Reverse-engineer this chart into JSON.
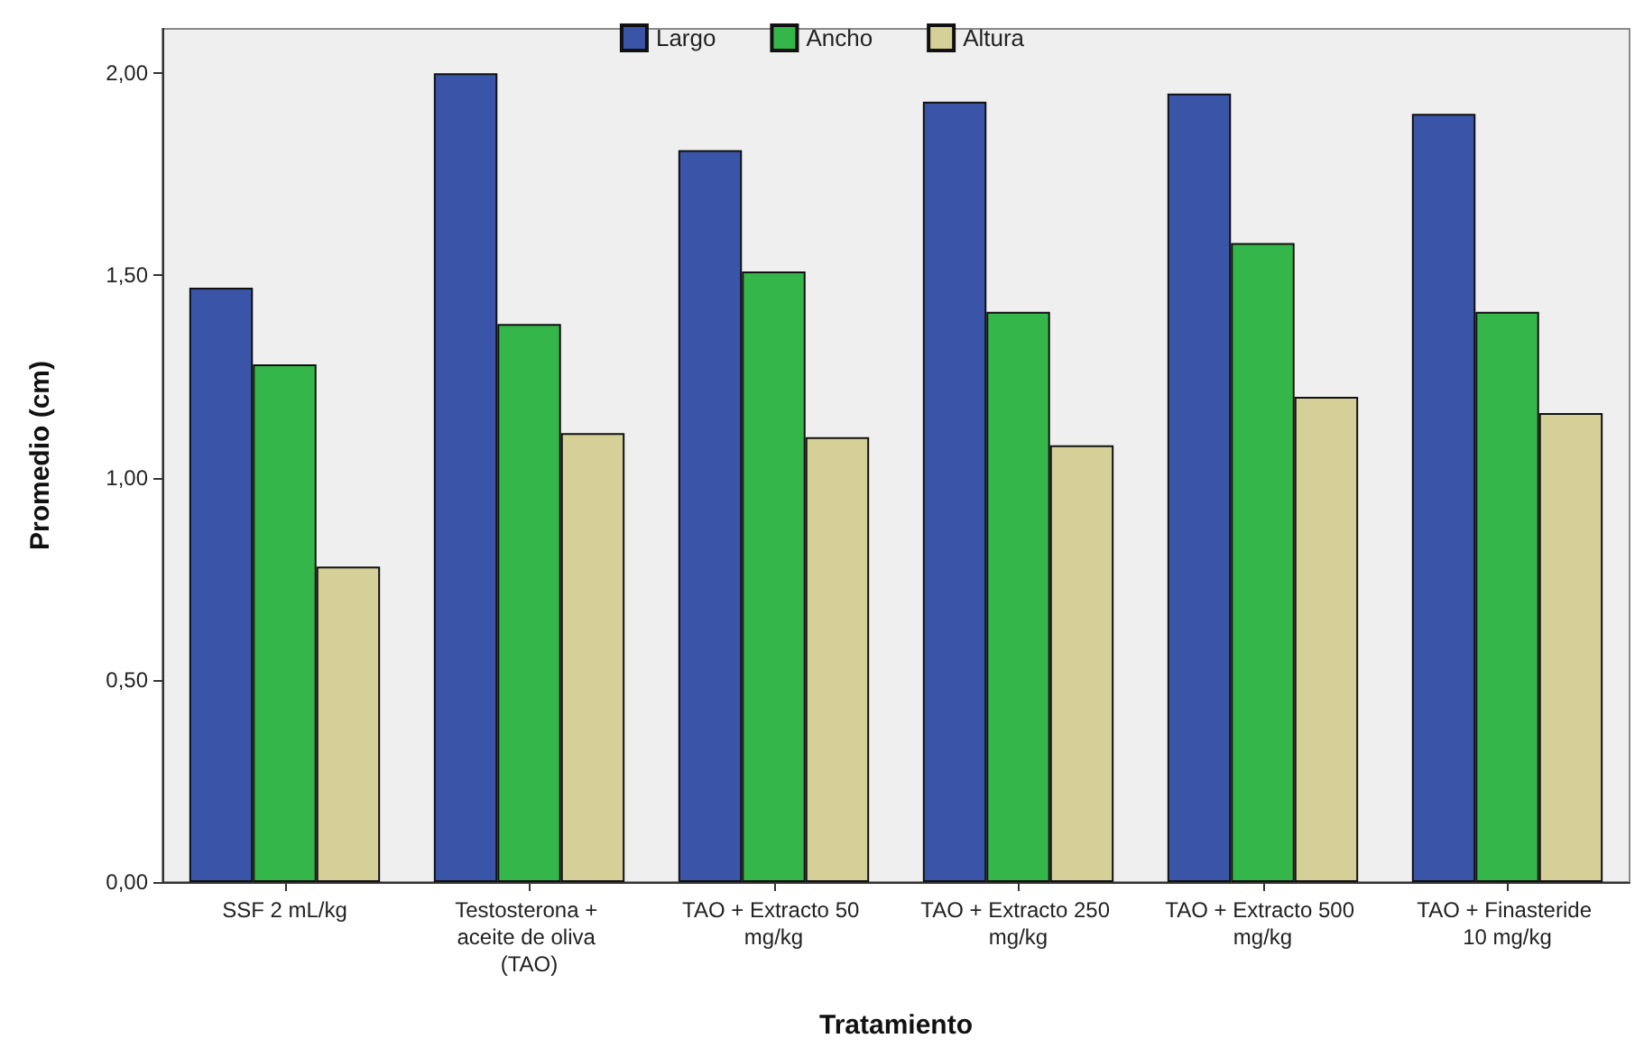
{
  "chart_data": {
    "type": "bar",
    "xlabel": "Tratamiento",
    "ylabel": "Promedio (cm)",
    "categories": [
      "SSF 2 mL/kg",
      "Testosterona + aceite de oliva (TAO)",
      "TAO + Extracto 50 mg/kg",
      "TAO + Extracto 250 mg/kg",
      "TAO + Extracto 500 mg/kg",
      "TAO + Finasteride 10 mg/kg"
    ],
    "series": [
      {
        "name": "Largo",
        "color": "#3a55a8",
        "values": [
          1.47,
          2.0,
          1.81,
          1.93,
          1.95,
          1.9
        ]
      },
      {
        "name": "Ancho",
        "color": "#35b64a",
        "values": [
          1.28,
          1.38,
          1.51,
          1.41,
          1.58,
          1.41
        ]
      },
      {
        "name": "Altura",
        "color": "#d5cf98",
        "values": [
          0.78,
          1.11,
          1.1,
          1.08,
          1.2,
          1.16
        ]
      }
    ],
    "ylim": [
      0,
      2.11
    ],
    "yticks": [
      {
        "value": 0,
        "label": "0,00"
      },
      {
        "value": 0.5,
        "label": "0,50"
      },
      {
        "value": 1,
        "label": "1,00"
      },
      {
        "value": 1.5,
        "label": "1,50"
      },
      {
        "value": 2,
        "label": "2,00"
      }
    ],
    "grid": false,
    "legend": "top"
  }
}
